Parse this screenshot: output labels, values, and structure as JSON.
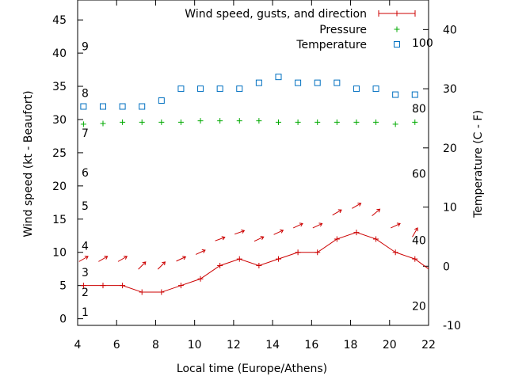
{
  "chart_data": {
    "type": "line",
    "xlabel": "Local time (Europe/Athens)",
    "ylabel": "Wind speed (kt - Beaufort)",
    "y2label": "Temperature (C - F)",
    "xlim": [
      4,
      22
    ],
    "ylim": [
      -1,
      48
    ],
    "y2lim": [
      -10,
      45
    ],
    "x_ticks": [
      "4",
      "6",
      "8",
      "10",
      "12",
      "14",
      "16",
      "18",
      "20",
      "22"
    ],
    "y_ticks": [
      "0",
      "5",
      "10",
      "15",
      "20",
      "25",
      "30",
      "35",
      "40",
      "45"
    ],
    "y2_ticks": [
      "-10",
      "0",
      "10",
      "20",
      "30",
      "40"
    ],
    "beaufort_labels": [
      {
        "label": "1",
        "kt": 1
      },
      {
        "label": "2",
        "kt": 4
      },
      {
        "label": "3",
        "kt": 7
      },
      {
        "label": "4",
        "kt": 11
      },
      {
        "label": "5",
        "kt": 17
      },
      {
        "label": "6",
        "kt": 22
      },
      {
        "label": "7",
        "kt": 28
      },
      {
        "label": "8",
        "kt": 34
      },
      {
        "label": "9",
        "kt": 41
      }
    ],
    "fahrenheit_labels": [
      {
        "label": "20",
        "c": -6.7
      },
      {
        "label": "40",
        "c": 4.4
      },
      {
        "label": "60",
        "c": 15.6
      },
      {
        "label": "80",
        "c": 26.7
      },
      {
        "label": "100",
        "c": 37.8
      }
    ],
    "legend_position": "top-right",
    "series": [
      {
        "name": "Wind speed, gusts, and direction",
        "color": "#cc0000",
        "x": [
          4.3,
          5.3,
          6.3,
          7.3,
          8.3,
          9.3,
          10.3,
          11.3,
          12.3,
          13.3,
          14.3,
          15.3,
          16.3,
          17.3,
          18.3,
          19.3,
          20.3,
          21.3,
          22
        ],
        "values": [
          5,
          5,
          5,
          4,
          4,
          5,
          6,
          8,
          9,
          8,
          9,
          10,
          10,
          12,
          13,
          12,
          10,
          9,
          7.5
        ],
        "gusts": [
          9,
          9,
          9,
          8,
          8,
          9,
          10,
          12,
          13,
          12,
          13,
          14,
          14,
          16,
          17,
          16,
          14,
          13,
          12
        ],
        "direction_deg": [
          240,
          240,
          240,
          225,
          225,
          245,
          245,
          250,
          250,
          245,
          245,
          245,
          245,
          240,
          240,
          230,
          245,
          210,
          250
        ]
      },
      {
        "name": "Pressure",
        "color": "#00aa00",
        "x": [
          4.3,
          5.3,
          6.3,
          7.3,
          8.3,
          9.3,
          10.3,
          11.3,
          12.3,
          13.3,
          14.3,
          15.3,
          16.3,
          17.3,
          18.3,
          19.3,
          20.3,
          21.3
        ],
        "values": [
          29.3,
          29.4,
          29.6,
          29.6,
          29.6,
          29.6,
          29.8,
          29.8,
          29.8,
          29.8,
          29.6,
          29.6,
          29.6,
          29.6,
          29.6,
          29.6,
          29.3,
          29.6
        ]
      },
      {
        "name": "Temperature",
        "color": "#0070c0",
        "x": [
          4.3,
          5.3,
          6.3,
          7.3,
          8.3,
          9.3,
          10.3,
          11.3,
          12.3,
          13.3,
          14.3,
          15.3,
          16.3,
          17.3,
          18.3,
          19.3,
          20.3,
          21.3
        ],
        "values": [
          27,
          27,
          27,
          27,
          28,
          30,
          30,
          30,
          30,
          31,
          32,
          31,
          31,
          31,
          30,
          30,
          29,
          29
        ]
      }
    ]
  }
}
